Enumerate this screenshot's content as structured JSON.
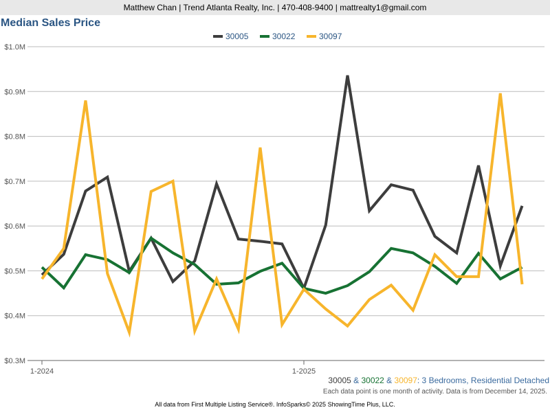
{
  "header": {
    "contact": "Matthew Chan | Trend Atlanta Realty, Inc. | 470-408-9400 | mattrealty1@gmail.com"
  },
  "chart_data": {
    "type": "line",
    "title": "Median Sales Price",
    "legend_position": "top-center",
    "ylim": [
      0.3,
      1.0
    ],
    "yticks": [
      1.0,
      0.9,
      0.8,
      0.7,
      0.6,
      0.5,
      0.4,
      0.3
    ],
    "ytick_labels": [
      "$1.0M",
      "$0.9M",
      "$0.8M",
      "$0.7M",
      "$0.6M",
      "$0.5M",
      "$0.4M",
      "$0.3M"
    ],
    "xtick_labels": [
      {
        "label": "1-2024",
        "index": 0
      },
      {
        "label": "1-2025",
        "index": 12
      }
    ],
    "x_count": 23,
    "grid": true,
    "series": [
      {
        "name": "30005",
        "color": "#3d3d3d",
        "values": [
          0.491,
          0.537,
          0.678,
          0.709,
          0.499,
          0.573,
          0.476,
          0.522,
          0.694,
          0.571,
          0.566,
          0.56,
          0.461,
          0.602,
          0.936,
          0.634,
          0.692,
          0.68,
          0.577,
          0.54,
          0.735,
          0.511,
          0.645
        ]
      },
      {
        "name": "30022",
        "color": "#177233",
        "values": [
          0.508,
          0.462,
          0.536,
          0.525,
          0.496,
          0.573,
          0.54,
          0.514,
          0.47,
          0.473,
          0.499,
          0.517,
          0.461,
          0.45,
          0.467,
          0.498,
          0.55,
          0.54,
          0.51,
          0.472,
          0.539,
          0.482,
          0.508
        ]
      },
      {
        "name": "30097",
        "color": "#f7b52c",
        "values": [
          0.482,
          0.55,
          0.88,
          0.494,
          0.363,
          0.677,
          0.7,
          0.366,
          0.482,
          0.37,
          0.775,
          0.38,
          0.459,
          0.415,
          0.377,
          0.436,
          0.468,
          0.412,
          0.536,
          0.487,
          0.487,
          0.896,
          0.47
        ]
      }
    ]
  },
  "subtitle": {
    "s1": "30005",
    "amp1": " & ",
    "s2": "30022",
    "amp2": " & ",
    "s3": "30097",
    "rest": ": 3 Bedrooms, Residential Detached"
  },
  "note": "Each data point is one month of activity. Data is from December 14, 2025.",
  "footer": "All data from First Multiple Listing Service®. InfoSparks© 2025 ShowingTime Plus, LLC."
}
